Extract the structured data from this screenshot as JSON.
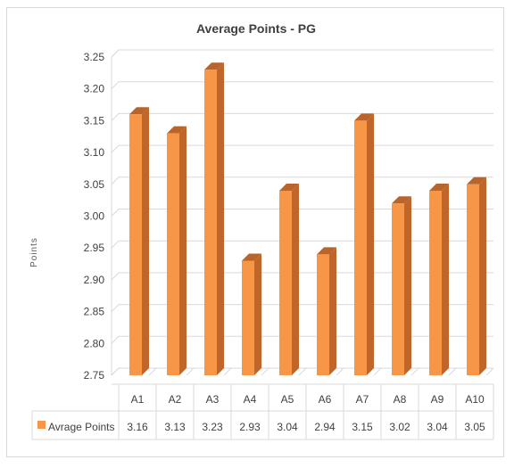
{
  "chart_data": {
    "type": "bar",
    "title": "Average Points - PG",
    "ylabel": "Points",
    "xlabel": "",
    "categories": [
      "A1",
      "A2",
      "A3",
      "A4",
      "A5",
      "A6",
      "A7",
      "A8",
      "A9",
      "A10"
    ],
    "series": [
      {
        "name": "Avrage Points",
        "values": [
          3.16,
          3.13,
          3.23,
          2.93,
          3.04,
          2.94,
          3.15,
          3.02,
          3.04,
          3.05
        ],
        "value_labels": [
          "3.16",
          "3.13",
          "3.23",
          "2.93",
          "3.04",
          "2.94",
          "3.15",
          "3.02",
          "3.04",
          "3.05"
        ],
        "color": "#F79646",
        "side_color": "#C0662A",
        "top_color": "#B8642A"
      }
    ],
    "ylim": [
      2.75,
      3.25
    ],
    "yticks": [
      "3.25",
      "3.20",
      "3.15",
      "3.10",
      "3.05",
      "3.00",
      "2.95",
      "2.90",
      "2.85",
      "2.80",
      "2.75"
    ],
    "grid": true,
    "legend": "data-table-below",
    "style": "3d-column"
  }
}
